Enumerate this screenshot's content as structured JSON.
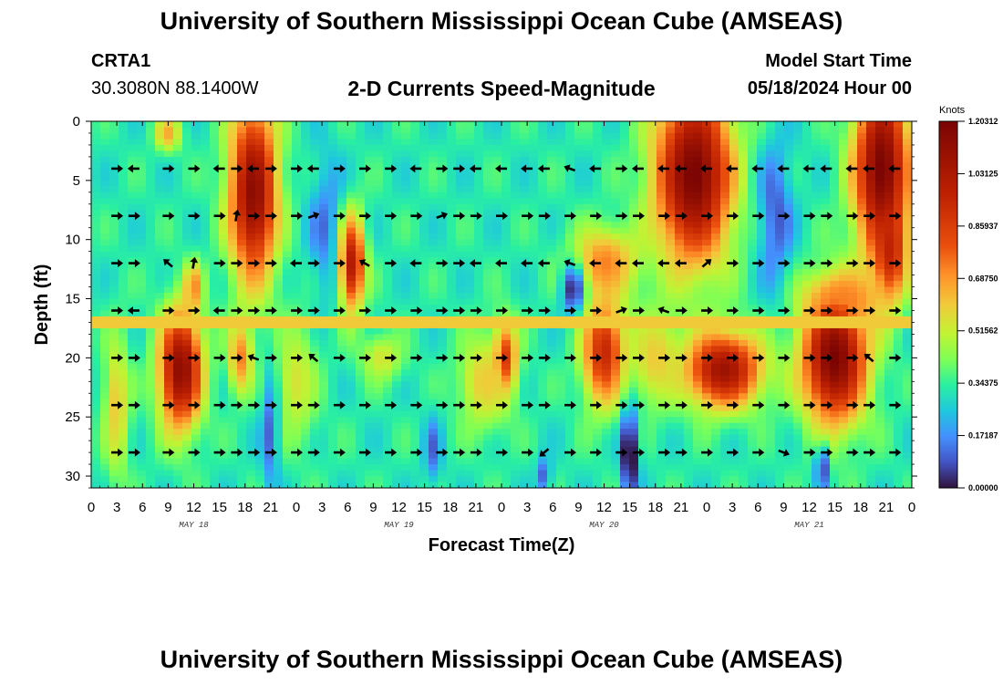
{
  "header": {
    "title": "University of Southern Mississippi Ocean Cube (AMSEAS)",
    "station_id": "CRTA1",
    "station_coords": "30.3080N  88.1400W",
    "model_start_label": "Model Start Time",
    "model_start_value": "05/18/2024 Hour 00",
    "subtitle": "2-D Currents Speed-Magnitude"
  },
  "footer": {
    "title": "University of Southern Mississippi Ocean Cube (AMSEAS)"
  },
  "chart_data": {
    "type": "heatmap",
    "title": "2-D Currents Speed-Magnitude",
    "xlabel": "Forecast Time(Z)",
    "ylabel": "Depth (ft)",
    "xlim": [
      0,
      96
    ],
    "ylim": [
      31,
      0
    ],
    "x_ticks": [
      0,
      3,
      6,
      9,
      12,
      15,
      18,
      21,
      24,
      27,
      30,
      33,
      36,
      39,
      42,
      45,
      48,
      51,
      54,
      57,
      60,
      63,
      66,
      69,
      72,
      75,
      78,
      81,
      84,
      87,
      90,
      93,
      96
    ],
    "x_tick_labels": [
      "0",
      "3",
      "6",
      "9",
      "12",
      "15",
      "18",
      "21",
      "0",
      "3",
      "6",
      "9",
      "12",
      "15",
      "18",
      "21",
      "0",
      "3",
      "6",
      "9",
      "12",
      "15",
      "18",
      "21",
      "0",
      "3",
      "6",
      "9",
      "12",
      "15",
      "18",
      "21",
      "0"
    ],
    "day_labels": [
      {
        "label": "MAY 18",
        "hour": 12
      },
      {
        "label": "MAY 19",
        "hour": 36
      },
      {
        "label": "MAY 20",
        "hour": 60
      },
      {
        "label": "MAY 21",
        "hour": 84
      }
    ],
    "y_ticks": [
      0,
      5,
      10,
      15,
      20,
      25,
      30
    ],
    "y_tick_labels": [
      "0",
      "5",
      "10",
      "15",
      "20",
      "25",
      "30"
    ],
    "colorbar": {
      "unit": "Knots",
      "labels": [
        "1.20312",
        "1.03125",
        "0.85937",
        "0.68750",
        "0.51562",
        "0.34375",
        "0.17187",
        "0.00000"
      ],
      "min": 0,
      "max": 1.20312
    },
    "arrow_depths_ft": [
      4,
      8,
      12,
      16,
      20,
      24,
      28
    ],
    "arrow_hours": [
      3,
      5,
      9,
      12,
      15,
      17,
      19,
      21,
      24,
      26,
      29,
      32,
      35,
      38,
      41,
      43,
      45,
      48,
      51,
      53,
      56,
      59,
      62,
      64,
      67,
      69,
      72,
      75,
      78,
      81,
      84,
      86,
      89,
      91,
      94
    ],
    "arrow_directions_deg": [
      [
        0,
        180,
        0,
        0,
        180,
        0,
        180,
        0,
        0,
        180,
        0,
        0,
        0,
        180,
        0,
        0,
        180,
        180,
        180,
        180,
        160,
        180,
        0,
        180,
        180,
        180,
        180,
        180,
        180,
        180,
        180,
        180,
        180,
        180,
        180
      ],
      [
        0,
        0,
        0,
        0,
        0,
        80,
        0,
        0,
        0,
        20,
        0,
        0,
        0,
        0,
        20,
        0,
        0,
        0,
        0,
        0,
        0,
        0,
        0,
        0,
        0,
        0,
        0,
        0,
        0,
        0,
        0,
        0,
        0,
        0,
        0
      ],
      [
        0,
        0,
        140,
        80,
        0,
        0,
        0,
        0,
        180,
        0,
        0,
        150,
        0,
        180,
        0,
        0,
        180,
        180,
        180,
        180,
        160,
        180,
        180,
        180,
        180,
        180,
        40,
        0,
        0,
        0,
        0,
        0,
        0,
        0,
        0
      ],
      [
        0,
        180,
        0,
        0,
        180,
        0,
        0,
        0,
        0,
        0,
        0,
        0,
        0,
        0,
        0,
        0,
        0,
        0,
        0,
        0,
        0,
        0,
        20,
        0,
        160,
        0,
        0,
        0,
        0,
        0,
        0,
        0,
        0,
        0,
        0
      ],
      [
        0,
        0,
        0,
        0,
        0,
        0,
        160,
        0,
        0,
        140,
        0,
        0,
        0,
        0,
        0,
        0,
        0,
        0,
        0,
        0,
        0,
        0,
        0,
        0,
        0,
        0,
        0,
        0,
        0,
        0,
        0,
        0,
        0,
        140,
        0
      ],
      [
        0,
        0,
        0,
        0,
        0,
        0,
        0,
        0,
        0,
        0,
        0,
        0,
        0,
        0,
        0,
        0,
        0,
        0,
        0,
        0,
        0,
        0,
        0,
        0,
        0,
        0,
        0,
        0,
        0,
        0,
        0,
        0,
        0,
        0,
        0
      ],
      [
        0,
        0,
        0,
        0,
        0,
        0,
        0,
        0,
        0,
        0,
        0,
        0,
        0,
        0,
        0,
        0,
        0,
        0,
        0,
        220,
        0,
        0,
        0,
        0,
        0,
        0,
        0,
        0,
        0,
        340,
        0,
        0,
        0,
        0,
        0
      ]
    ]
  }
}
